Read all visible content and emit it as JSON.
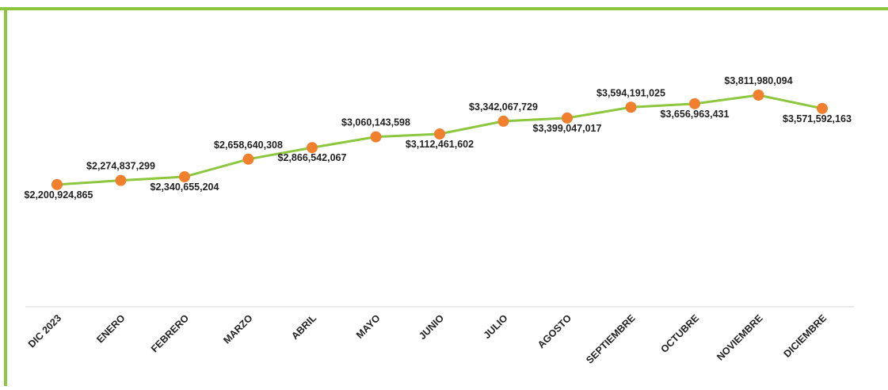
{
  "chart_data": {
    "type": "line",
    "categories": [
      "DIC 2023",
      "ENERO",
      "FEBRERO",
      "MARZO",
      "ABRIL",
      "MAYO",
      "JUNIO",
      "JULIO",
      "AGOSTO",
      "SEPTIEMBRE",
      "OCTUBRE",
      "NOVIEMBRE",
      "DICIEMBRE"
    ],
    "series": [
      {
        "color": "#8dc63f",
        "marker_color": "#f07f2e",
        "values": [
          2200924865,
          2274837299,
          2340655204,
          2658640308,
          2866542067,
          3060143598,
          3112461602,
          3342067729,
          3399047017,
          3594191025,
          3656963431,
          3811980094,
          3571592163
        ],
        "value_labels": [
          "$2,200,924,865",
          "$2,274,837,299",
          "$2,340,655,204",
          "$2,658,640,308",
          "$2,866,542,067",
          "$3,060,143,598",
          "$3,112,461,602",
          "$3,342,067,729",
          "$3,399,047,017",
          "$3,594,191,025",
          "$3,656,963,431",
          "$3,811,980,094",
          "$3,571,592,163"
        ]
      }
    ]
  }
}
